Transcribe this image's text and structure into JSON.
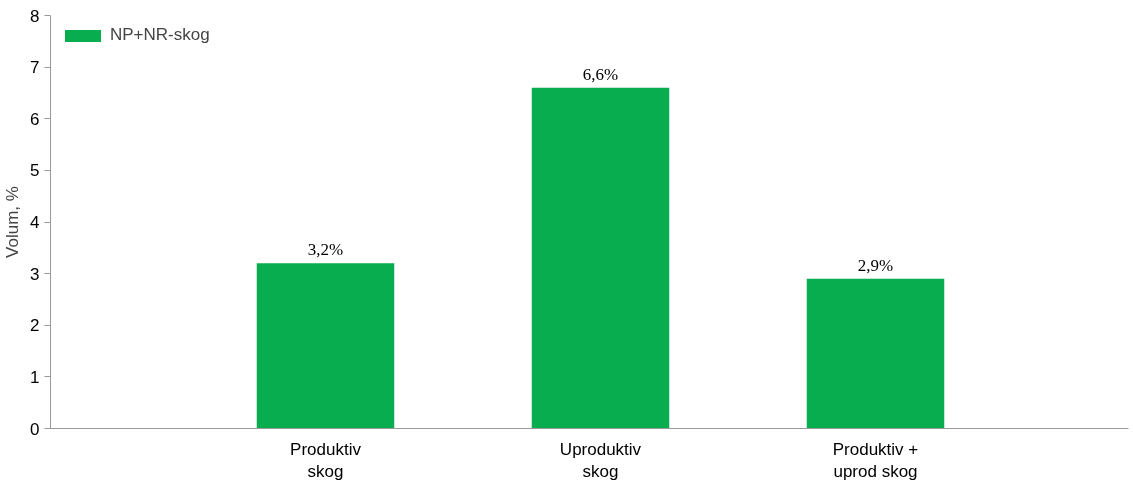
{
  "chart_data": {
    "type": "bar",
    "ylabel": "Volum, %",
    "categories": [
      "Produktiv skog",
      "Uproduktiv skog",
      "Produktiv + uprod skog"
    ],
    "series": [
      {
        "name": "NP+NR-skog",
        "color": "#07ad4f",
        "values": [
          3.2,
          6.6,
          2.9
        ],
        "value_labels": [
          "3,2%",
          "6,6%",
          "2,9%"
        ]
      }
    ],
    "ylim": [
      0,
      8
    ],
    "yticks": [
      0,
      1,
      2,
      3,
      4,
      5,
      6,
      7,
      8
    ],
    "grid": false,
    "legend": "top left"
  }
}
